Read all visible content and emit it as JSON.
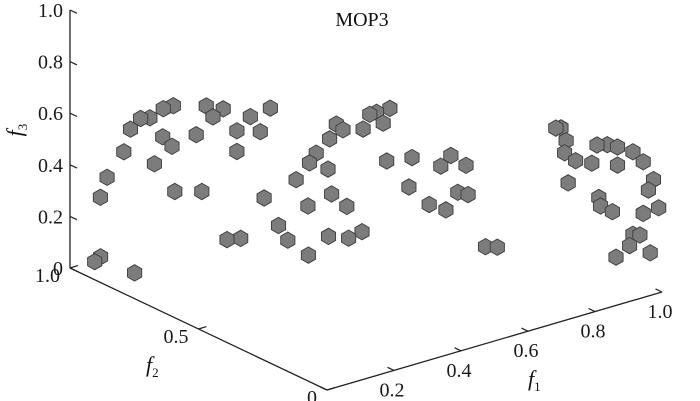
{
  "chart_data": {
    "type": "scatter",
    "projection": "3d",
    "title": "MOP3",
    "axes": {
      "x": {
        "symbol": "f",
        "subscript": "1",
        "range": [
          0,
          1
        ],
        "ticks": [
          "0",
          "0.2",
          "0.4",
          "0.6",
          "0.8",
          "1.0"
        ]
      },
      "y": {
        "symbol": "f",
        "subscript": "2",
        "range": [
          0,
          1
        ],
        "ticks": [
          "0",
          "0.5",
          "1.0"
        ]
      },
      "z": {
        "symbol": "f",
        "subscript": "3",
        "range": [
          0,
          1
        ],
        "ticks": [
          "0",
          "0.2",
          "0.4",
          "0.6",
          "0.8",
          "1.0"
        ]
      }
    },
    "grid": false,
    "marker_color": "#7c7c7c",
    "points": [
      [
        0.02,
        0.93,
        0.05
      ],
      [
        0.03,
        0.92,
        0.07
      ],
      [
        0.07,
        0.84,
        0.03
      ],
      [
        0.06,
        0.96,
        0.27
      ],
      [
        0.08,
        0.96,
        0.34
      ],
      [
        0.13,
        0.96,
        0.42
      ],
      [
        0.15,
        0.96,
        0.5
      ],
      [
        0.18,
        0.96,
        0.53
      ],
      [
        0.2,
        0.95,
        0.53
      ],
      [
        0.24,
        0.95,
        0.55
      ],
      [
        0.27,
        0.95,
        0.55
      ],
      [
        0.16,
        0.88,
        0.4
      ],
      [
        0.2,
        0.9,
        0.48
      ],
      [
        0.22,
        0.89,
        0.44
      ],
      [
        0.19,
        0.84,
        0.3
      ],
      [
        0.24,
        0.8,
        0.3
      ],
      [
        0.3,
        0.78,
        0.1
      ],
      [
        0.3,
        0.9,
        0.45
      ],
      [
        0.33,
        0.9,
        0.55
      ],
      [
        0.35,
        0.9,
        0.5
      ],
      [
        0.35,
        0.86,
        0.55
      ],
      [
        0.36,
        0.82,
        0.48
      ],
      [
        0.31,
        0.74,
        0.12
      ],
      [
        0.36,
        0.82,
        0.4
      ],
      [
        0.4,
        0.82,
        0.52
      ],
      [
        0.43,
        0.82,
        0.45
      ],
      [
        0.46,
        0.82,
        0.53
      ],
      [
        0.38,
        0.74,
        0.25
      ],
      [
        0.4,
        0.71,
        0.15
      ],
      [
        0.42,
        0.7,
        0.09
      ],
      [
        0.42,
        0.62,
        0.07
      ],
      [
        0.46,
        0.72,
        0.3
      ],
      [
        0.5,
        0.72,
        0.35
      ],
      [
        0.48,
        0.7,
        0.2
      ],
      [
        0.48,
        0.62,
        0.12
      ],
      [
        0.52,
        0.66,
        0.25
      ],
      [
        0.54,
        0.62,
        0.09
      ],
      [
        0.58,
        0.62,
        0.1
      ],
      [
        0.55,
        0.64,
        0.2
      ],
      [
        0.52,
        0.72,
        0.38
      ],
      [
        0.56,
        0.72,
        0.42
      ],
      [
        0.58,
        0.72,
        0.47
      ],
      [
        0.54,
        0.7,
        0.32
      ],
      [
        0.6,
        0.72,
        0.44
      ],
      [
        0.66,
        0.72,
        0.42
      ],
      [
        0.68,
        0.72,
        0.47
      ],
      [
        0.7,
        0.72,
        0.47
      ],
      [
        0.72,
        0.72,
        0.42
      ],
      [
        0.74,
        0.72,
        0.47
      ],
      [
        0.7,
        0.68,
        0.3
      ],
      [
        0.76,
        0.66,
        0.3
      ],
      [
        0.72,
        0.62,
        0.22
      ],
      [
        0.75,
        0.58,
        0.16
      ],
      [
        0.8,
        0.6,
        0.28
      ],
      [
        0.82,
        0.56,
        0.19
      ],
      [
        0.8,
        0.58,
        0.12
      ],
      [
        0.83,
        0.6,
        0.31
      ],
      [
        0.86,
        0.58,
        0.27
      ],
      [
        0.82,
        0.52,
        0.2
      ],
      [
        0.78,
        0.4,
        0.07
      ],
      [
        0.8,
        0.38,
        0.07
      ],
      [
        0.95,
        0.3,
        0.3
      ],
      [
        0.97,
        0.34,
        0.39
      ],
      [
        0.99,
        0.4,
        0.45
      ],
      [
        0.98,
        0.31,
        0.37
      ],
      [
        0.97,
        0.2,
        0.25
      ],
      [
        0.99,
        0.18,
        0.23
      ],
      [
        0.98,
        0.22,
        0.27
      ],
      [
        0.99,
        0.1,
        0.18
      ],
      [
        0.98,
        0.06,
        0.2
      ],
      [
        0.98,
        0.02,
        0.15
      ],
      [
        0.99,
        0.06,
        0.28
      ],
      [
        0.99,
        0.0,
        0.33
      ],
      [
        0.99,
        0.04,
        0.38
      ],
      [
        0.99,
        0.02,
        0.43
      ],
      [
        0.99,
        0.06,
        0.48
      ],
      [
        0.99,
        0.1,
        0.5
      ],
      [
        0.99,
        0.16,
        0.49
      ],
      [
        0.99,
        0.2,
        0.48
      ],
      [
        0.99,
        0.24,
        0.46
      ],
      [
        0.98,
        0.1,
        0.14
      ],
      [
        0.97,
        0.14,
        0.08
      ],
      [
        0.99,
        0.16,
        0.42
      ],
      [
        0.99,
        0.26,
        0.38
      ],
      [
        0.99,
        0.36,
        0.42
      ],
      [
        0.99,
        0.38,
        0.46
      ]
    ]
  }
}
